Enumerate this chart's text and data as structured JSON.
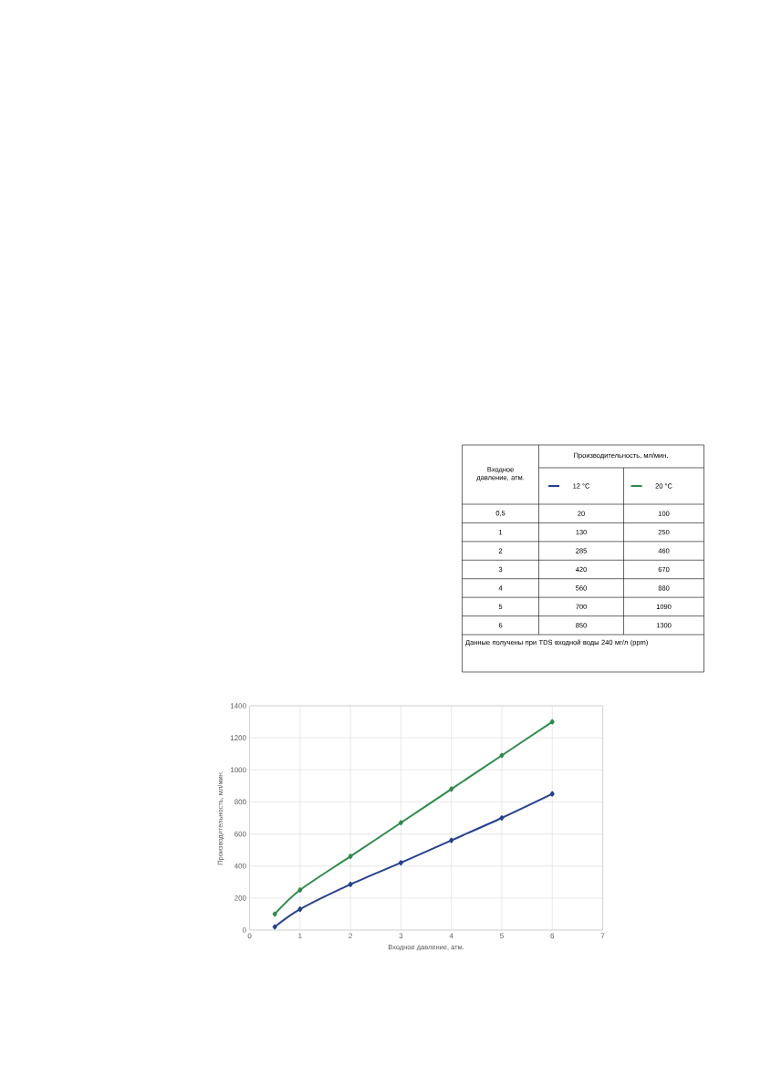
{
  "chart_data": {
    "type": "line",
    "xlabel": "Входное давление, атм.",
    "ylabel": "Производительность, мл/мин.",
    "x": [
      0.5,
      1,
      2,
      3,
      4,
      5,
      6
    ],
    "series": [
      {
        "name": "12 °C",
        "color": "#24418f",
        "values": [
          20,
          130,
          285,
          420,
          560,
          700,
          850
        ]
      },
      {
        "name": "20 °C",
        "color": "#2e8b4a",
        "values": [
          100,
          250,
          460,
          670,
          880,
          1090,
          1300
        ]
      }
    ],
    "xlim": [
      0,
      7
    ],
    "xticks": [
      0,
      1,
      2,
      3,
      4,
      5,
      6,
      7
    ],
    "ylim": [
      0,
      1400
    ],
    "yticks": [
      0,
      200,
      400,
      600,
      800,
      1000,
      1200,
      1400
    ],
    "grid": true,
    "legend": "top right",
    "marker": "diamond",
    "line_style": "solid",
    "annotations": [
      "Данные получены при TDS входной воды 240 мг/л (ppm)",
      "0,5",
      "1",
      "2",
      "3",
      "4",
      "5",
      "6",
      "20",
      "100",
      "130",
      "250",
      "285",
      "460",
      "420",
      "670",
      "560",
      "880",
      "700",
      "1090",
      "850",
      "1300"
    ]
  }
}
